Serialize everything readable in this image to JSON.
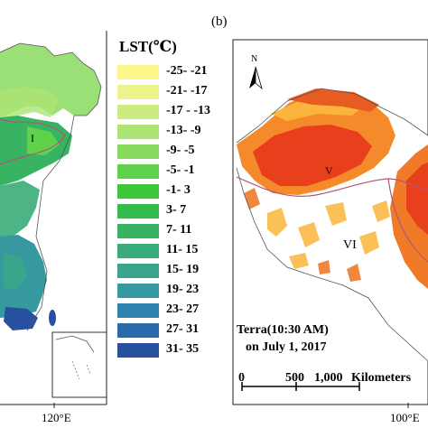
{
  "panel_label": "(b)",
  "legend": {
    "title": "LST(℃)",
    "classes": [
      {
        "label": "-25- -21",
        "color": "#fdf68a"
      },
      {
        "label": "-21- -17",
        "color": "#eef28a"
      },
      {
        "label": "-17 - -13",
        "color": "#ccec82"
      },
      {
        "label": "-13- -9",
        "color": "#abe473"
      },
      {
        "label": "-9- -5",
        "color": "#88db5e"
      },
      {
        "label": "-5- -1",
        "color": "#5ed24a"
      },
      {
        "label": "-1- 3",
        "color": "#3ec63a"
      },
      {
        "label": "3- 7",
        "color": "#34bb4c"
      },
      {
        "label": "7- 11",
        "color": "#38b362"
      },
      {
        "label": "11- 15",
        "color": "#3aac79"
      },
      {
        "label": "15- 19",
        "color": "#3aa48d"
      },
      {
        "label": "19- 23",
        "color": "#3799a0"
      },
      {
        "label": "23- 27",
        "color": "#2f84ad"
      },
      {
        "label": "27- 31",
        "color": "#2b6bab"
      },
      {
        "label": "31- 35",
        "color": "#27509e"
      }
    ]
  },
  "left_map": {
    "longitude_label": "120°E",
    "region_labels": [
      "I"
    ]
  },
  "right_map": {
    "north_label": "N",
    "region_labels": [
      "V",
      "VI"
    ],
    "caption_line1": "Terra(10:30 AM)",
    "caption_line2": "on July 1, 2017",
    "scalebar": {
      "ticks": [
        "0",
        "500",
        "1,000"
      ],
      "unit": "Kilometers"
    },
    "longitude_label": "100°E"
  },
  "colors": {
    "boundary": "#b0577a",
    "outline": "#333333",
    "hot": "#e8401c",
    "warm": "#f58a2a",
    "mild": "#fbb53c"
  }
}
